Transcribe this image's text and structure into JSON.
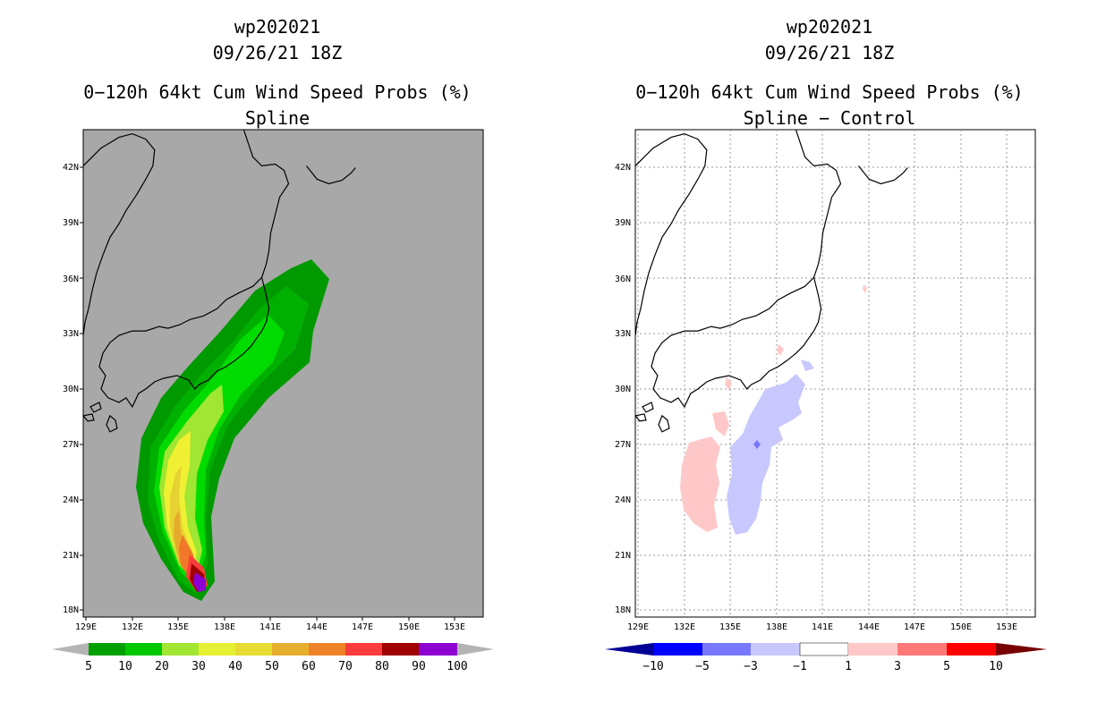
{
  "left_panel": {
    "storm_id": "wp202021",
    "datetime": "09/26/21 18Z",
    "product": "0−120h 64kt Cum Wind Speed Probs (%)",
    "subtitle": "Spline",
    "lon_labels": [
      "129E",
      "132E",
      "135E",
      "138E",
      "141E",
      "144E",
      "147E",
      "150E",
      "153E"
    ],
    "lat_labels": [
      "42N",
      "39N",
      "36N",
      "33N",
      "30N",
      "27N",
      "24N",
      "21N",
      "18N"
    ],
    "colorbar": {
      "labels": [
        "5",
        "10",
        "20",
        "30",
        "40",
        "50",
        "60",
        "70",
        "80",
        "90",
        "100"
      ],
      "colors": [
        "#00a000",
        "#00c800",
        "#00dc00",
        "#a0e632",
        "#e6f032",
        "#e6dc32",
        "#e6af2d",
        "#f08228",
        "#fa3c3c",
        "#a00000",
        "#8c00d2"
      ],
      "end_color": "#b4b4b4"
    }
  },
  "right_panel": {
    "storm_id": "wp202021",
    "datetime": "09/26/21 18Z",
    "product": "0−120h 64kt Cum Wind Speed Probs (%)",
    "subtitle": "Spline − Control",
    "lon_labels": [
      "129E",
      "132E",
      "135E",
      "138E",
      "141E",
      "144E",
      "147E",
      "150E",
      "153E"
    ],
    "lat_labels": [
      "42N",
      "39N",
      "36N",
      "33N",
      "30N",
      "27N",
      "24N",
      "21N",
      "18N"
    ],
    "colorbar": {
      "labels": [
        "−10",
        "−5",
        "−3",
        "−1",
        "1",
        "3",
        "5",
        "10"
      ],
      "colors": [
        "#1e1ec8",
        "#0000ff",
        "#7878ff",
        "#c8c8ff",
        "#ffffff",
        "#ffc8c8",
        "#ff7878",
        "#ff0000"
      ],
      "low_color": "#000096",
      "high_color": "#780000"
    }
  }
}
